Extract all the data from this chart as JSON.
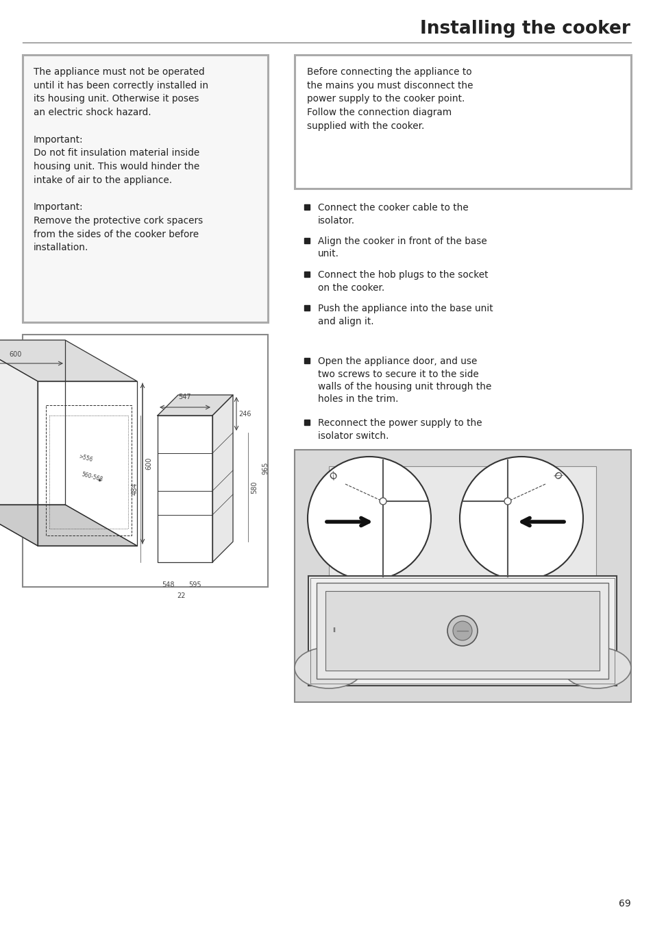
{
  "title": "Installing the cooker",
  "page_number": "69",
  "bg": "#ffffff",
  "text_color": "#222222",
  "dim_color": "#444444",
  "box_border": "#aaaaaa",
  "left_box_text_lines": [
    "The appliance must not be operated",
    "until it has been correctly installed in",
    "its housing unit. Otherwise it poses",
    "an electric shock hazard.",
    "",
    "Important:",
    "Do not fit insulation material inside",
    "housing unit. This would hinder the",
    "intake of air to the appliance.",
    "",
    "Important:",
    "Remove the protective cork spacers",
    "from the sides of the cooker before",
    "installation."
  ],
  "right_box_text_lines": [
    "Before connecting the appliance to",
    "the mains you must disconnect the",
    "power supply to the cooker point.",
    "Follow the connection diagram",
    "supplied with the cooker."
  ],
  "bullet_items": [
    [
      "Connect the cooker cable to the",
      "isolator."
    ],
    [
      "Align the cooker in front of the base",
      "unit."
    ],
    [
      "Connect the hob plugs to the socket",
      "on the cooker."
    ],
    [
      "Push the appliance into the base unit",
      "and align it."
    ],
    [
      "Open the appliance door, and use",
      "two screws to secure it to the side",
      "walls of the housing unit through the",
      "holes in the trim."
    ],
    [
      "Reconnect the power supply to the",
      "isolator switch."
    ]
  ]
}
